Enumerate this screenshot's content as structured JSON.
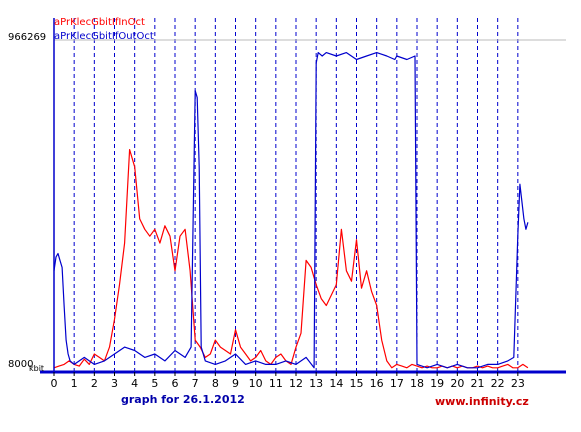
{
  "chart_data": {
    "type": "line",
    "caption": "graph for 26.1.2012",
    "brand": "www.infinity.cz",
    "y_top_label": "966269",
    "y_bottom_label": "8000",
    "y_unit_label": "kbit",
    "ylim": [
      8000,
      966269
    ],
    "x_ticks": [
      "0",
      "1",
      "2",
      "3",
      "4",
      "5",
      "6",
      "7",
      "8",
      "9",
      "10",
      "11",
      "12",
      "13",
      "14",
      "15",
      "16",
      "17",
      "18",
      "19",
      "20",
      "21",
      "22",
      "23"
    ],
    "xlim": [
      0,
      24
    ],
    "grid": "vertical dashed at each hour",
    "colors": {
      "in": "#ff0000",
      "out": "#0000cc",
      "grid": "#0000cc",
      "axis": "#0000cc",
      "caption": "#0000aa",
      "brand": "#cc0000",
      "reference": "#bbbbbb"
    },
    "series": [
      {
        "name": "aPrKlecGbitIfInOct",
        "key": "in",
        "x": [
          0.0,
          0.25,
          0.5,
          0.75,
          1.0,
          1.25,
          1.5,
          1.75,
          2.0,
          2.25,
          2.5,
          2.75,
          3.0,
          3.25,
          3.5,
          3.75,
          4.0,
          4.25,
          4.5,
          4.75,
          5.0,
          5.25,
          5.5,
          5.75,
          6.0,
          6.25,
          6.5,
          6.75,
          7.0,
          7.25,
          7.5,
          7.75,
          8.0,
          8.25,
          8.5,
          8.75,
          9.0,
          9.25,
          9.5,
          9.75,
          10.0,
          10.25,
          10.5,
          10.75,
          11.0,
          11.25,
          11.5,
          11.75,
          12.0,
          12.25,
          12.5,
          12.75,
          13.0,
          13.25,
          13.5,
          13.75,
          14.0,
          14.25,
          14.5,
          14.75,
          15.0,
          15.25,
          15.5,
          15.75,
          16.0,
          16.25,
          16.5,
          16.75,
          17.0,
          17.25,
          17.5,
          17.75,
          18.0,
          18.25,
          18.5,
          18.75,
          19.0,
          19.25,
          19.5,
          19.75,
          20.0,
          20.25,
          20.5,
          20.75,
          21.0,
          21.25,
          21.5,
          21.75,
          22.0,
          22.25,
          22.5,
          22.75,
          23.0,
          23.25,
          23.5
        ],
        "y": [
          20000,
          25000,
          30000,
          40000,
          30000,
          25000,
          45000,
          30000,
          60000,
          50000,
          40000,
          80000,
          160000,
          260000,
          380000,
          650000,
          600000,
          450000,
          420000,
          400000,
          420000,
          380000,
          430000,
          400000,
          300000,
          400000,
          420000,
          300000,
          100000,
          80000,
          50000,
          60000,
          100000,
          80000,
          70000,
          60000,
          130000,
          80000,
          60000,
          40000,
          50000,
          70000,
          40000,
          30000,
          50000,
          60000,
          40000,
          30000,
          80000,
          120000,
          330000,
          310000,
          260000,
          220000,
          200000,
          230000,
          260000,
          420000,
          300000,
          270000,
          390000,
          250000,
          300000,
          240000,
          200000,
          100000,
          40000,
          20000,
          30000,
          25000,
          20000,
          30000,
          25000,
          20000,
          25000,
          20000,
          20000,
          25000,
          20000,
          25000,
          20000,
          25000,
          20000,
          20000,
          25000,
          20000,
          25000,
          20000,
          20000,
          25000,
          30000,
          20000,
          20000,
          30000,
          20000
        ]
      },
      {
        "name": "aPrKlecGbitIfOutOct",
        "key": "out",
        "x": [
          0.0,
          0.1,
          0.2,
          0.3,
          0.4,
          0.5,
          0.6,
          0.7,
          0.8,
          1.0,
          1.5,
          2.0,
          2.5,
          3.0,
          3.5,
          4.0,
          4.5,
          5.0,
          5.5,
          6.0,
          6.5,
          6.8,
          7.0,
          7.1,
          7.2,
          7.3,
          7.5,
          8.0,
          8.5,
          9.0,
          9.5,
          10.0,
          10.5,
          11.0,
          11.5,
          12.0,
          12.5,
          12.9,
          13.0,
          13.1,
          13.3,
          13.5,
          14.0,
          14.5,
          15.0,
          15.5,
          16.0,
          16.5,
          16.9,
          17.0,
          17.5,
          17.9,
          18.0,
          18.5,
          19.0,
          19.5,
          20.0,
          20.5,
          21.0,
          21.5,
          22.0,
          22.5,
          22.8,
          23.0,
          23.1,
          23.2,
          23.3,
          23.4,
          23.5
        ],
        "y": [
          300000,
          340000,
          350000,
          330000,
          310000,
          200000,
          100000,
          60000,
          40000,
          30000,
          50000,
          30000,
          40000,
          60000,
          80000,
          70000,
          50000,
          60000,
          40000,
          70000,
          50000,
          80000,
          820000,
          800000,
          600000,
          80000,
          40000,
          30000,
          40000,
          60000,
          30000,
          40000,
          30000,
          30000,
          40000,
          30000,
          50000,
          20000,
          900000,
          930000,
          920000,
          930000,
          920000,
          930000,
          910000,
          920000,
          930000,
          920000,
          910000,
          920000,
          910000,
          920000,
          30000,
          20000,
          30000,
          20000,
          30000,
          20000,
          20000,
          30000,
          30000,
          40000,
          50000,
          400000,
          550000,
          500000,
          450000,
          420000,
          440000
        ]
      }
    ]
  }
}
